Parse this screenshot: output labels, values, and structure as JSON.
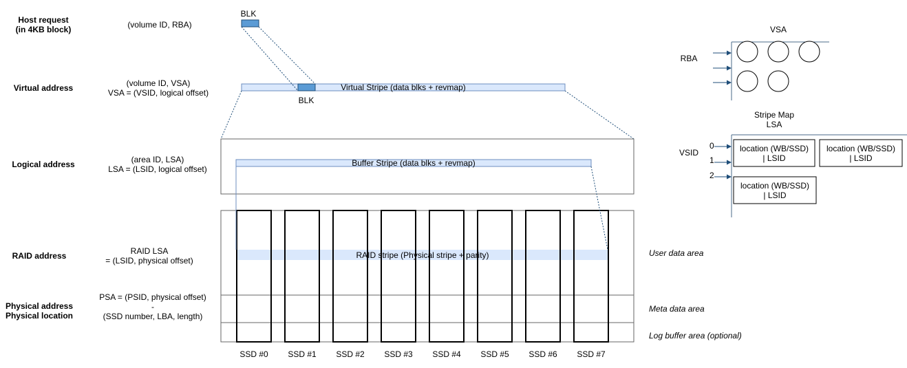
{
  "levels": [
    {
      "label_lines": [
        "Host request",
        "(in 4KB block)"
      ],
      "format_lines": [
        "(volume ID, RBA)"
      ]
    },
    {
      "label_lines": [
        "Virtual address"
      ],
      "format_lines": [
        "(volume ID, VSA)",
        "VSA = (VSID, logical offset)"
      ]
    },
    {
      "label_lines": [
        "Logical address"
      ],
      "format_lines": [
        "(area ID, LSA)",
        "LSA = (LSID, logical offset)"
      ]
    },
    {
      "label_lines": [
        "RAID address"
      ],
      "format_lines": [
        "RAID LSA",
        "= (LSID, physical offset)"
      ]
    },
    {
      "label_lines": [
        "Physical address",
        "Physical location"
      ],
      "format_lines": [
        "PSA = (PSID, physical offset)",
        "-",
        "(SSD number, LBA, length)"
      ]
    }
  ],
  "blk_label": "BLK",
  "stripes": {
    "virtual": "Virtual Stripe (data blks + revmap)",
    "buffer": "Buffer Stripe (data blks + revmap)",
    "raid": "RAID stripe (Physical stripe + parity)"
  },
  "areas": [
    "User data area",
    "Meta data area",
    "Log buffer area (optional)"
  ],
  "ssds": [
    "SSD #0",
    "SSD #1",
    "SSD #2",
    "SSD #3",
    "SSD #4",
    "SSD #5",
    "SSD #6",
    "SSD #7"
  ],
  "vsa_map": {
    "title": "VSA",
    "axis_label": "RBA",
    "row_circles": [
      3,
      2
    ]
  },
  "stripe_map": {
    "title_lines": [
      "Stripe Map",
      "LSA"
    ],
    "axis_label": "VSID",
    "row_labels": [
      "0",
      "1",
      "2"
    ],
    "entry_lines": [
      "location (WB/SSD)",
      "| LSID"
    ]
  },
  "colors": {
    "stripe_fill": "#dae8fc",
    "stripe_stroke": "#6c8ebf",
    "blk_fill": "#5b9bd5",
    "arrow": "#1f4e79",
    "link": "#1f4e79"
  }
}
